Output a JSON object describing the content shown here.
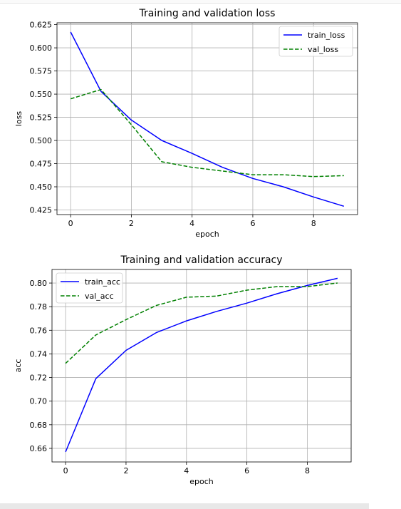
{
  "chart_data": [
    {
      "type": "line",
      "title": "Training and validation loss",
      "xlabel": "epoch",
      "ylabel": "loss",
      "x": [
        0,
        1,
        2,
        3,
        4,
        5,
        6,
        7,
        8,
        9
      ],
      "xlim": [
        -0.45,
        9.45
      ],
      "ylim": [
        0.42,
        0.627
      ],
      "xticks": [
        0,
        2,
        4,
        6,
        8
      ],
      "yticks": [
        0.425,
        0.45,
        0.475,
        0.5,
        0.525,
        0.55,
        0.575,
        0.6,
        0.625
      ],
      "ytick_labels": [
        "0.425",
        "0.450",
        "0.475",
        "0.500",
        "0.525",
        "0.550",
        "0.575",
        "0.600",
        "0.625"
      ],
      "grid": true,
      "legend_position": "top-right",
      "series": [
        {
          "name": "train_loss",
          "color": "#0000ff",
          "style": "solid",
          "values": [
            0.617,
            0.553,
            0.522,
            0.5,
            0.486,
            0.471,
            0.459,
            0.45,
            0.439,
            0.429
          ]
        },
        {
          "name": "val_loss",
          "color": "#008000",
          "style": "dashed",
          "values": [
            0.545,
            0.555,
            0.517,
            0.477,
            0.471,
            0.467,
            0.463,
            0.463,
            0.461,
            0.462
          ]
        }
      ]
    },
    {
      "type": "line",
      "title": "Training and validation accuracy",
      "xlabel": "epoch",
      "ylabel": "acc",
      "x": [
        0,
        1,
        2,
        3,
        4,
        5,
        6,
        7,
        8,
        9
      ],
      "xlim": [
        -0.45,
        9.45
      ],
      "ylim": [
        0.6485,
        0.8115
      ],
      "xticks": [
        0,
        2,
        4,
        6,
        8
      ],
      "yticks": [
        0.66,
        0.68,
        0.7,
        0.72,
        0.74,
        0.76,
        0.78,
        0.8
      ],
      "ytick_labels": [
        "0.66",
        "0.68",
        "0.70",
        "0.72",
        "0.74",
        "0.76",
        "0.78",
        "0.80"
      ],
      "grid": true,
      "legend_position": "top-left",
      "series": [
        {
          "name": "train_acc",
          "color": "#0000ff",
          "style": "solid",
          "values": [
            0.657,
            0.719,
            0.743,
            0.758,
            0.768,
            0.776,
            0.783,
            0.791,
            0.798,
            0.804
          ]
        },
        {
          "name": "val_acc",
          "color": "#008000",
          "style": "dashed",
          "values": [
            0.732,
            0.756,
            0.769,
            0.781,
            0.788,
            0.789,
            0.794,
            0.797,
            0.797,
            0.8
          ]
        }
      ]
    }
  ]
}
